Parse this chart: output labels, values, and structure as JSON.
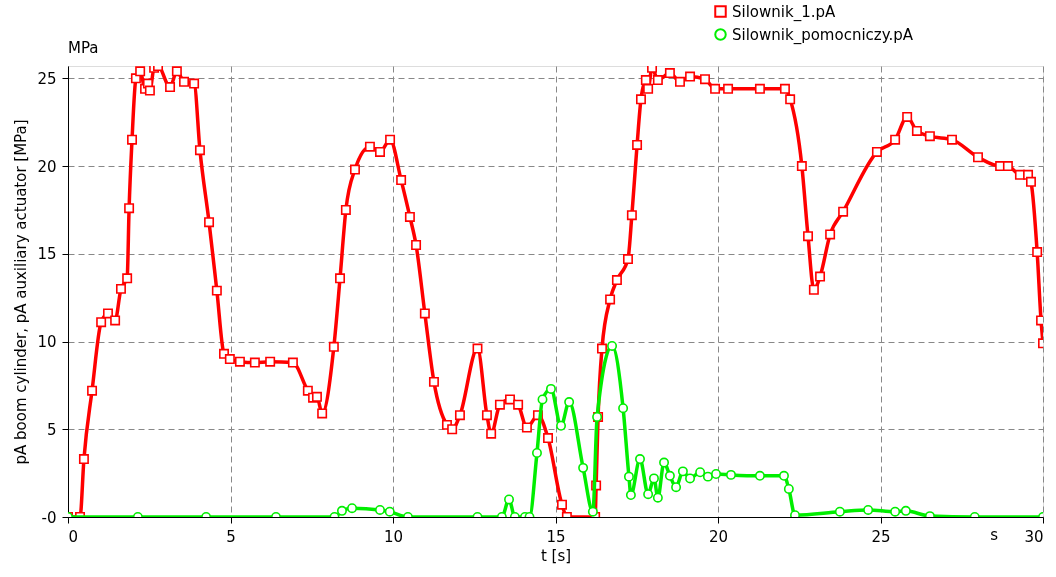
{
  "chart_data": {
    "type": "line",
    "xlabel": "t [s]",
    "ylabel": "pA boom cylinder, pA auxiliary actuator [MPa]",
    "annotations": [
      "MPa",
      "s"
    ],
    "xlim": [
      0,
      30
    ],
    "xticks": [
      0,
      5,
      10,
      15,
      20,
      25,
      30
    ],
    "ylim": [
      0,
      25.7
    ],
    "yticks": [
      {
        "value": 0,
        "label": "-0"
      },
      5,
      10,
      15,
      20,
      25
    ],
    "grid": true,
    "legend": "top right",
    "line_style": "solid",
    "series": [
      {
        "name": "Silownik_1.pA",
        "color": "#ff0000",
        "marker": "square",
        "x": [
          0,
          0.37,
          0.49,
          0.74,
          1.02,
          1.23,
          1.45,
          1.63,
          1.82,
          1.88,
          1.97,
          2.09,
          2.22,
          2.37,
          2.46,
          2.52,
          2.65,
          2.77,
          3.14,
          3.35,
          3.57,
          3.88,
          4.06,
          4.34,
          4.58,
          4.8,
          4.98,
          5.29,
          5.75,
          6.22,
          6.92,
          7.38,
          7.54,
          7.66,
          7.82,
          8.18,
          8.37,
          8.55,
          8.83,
          9.29,
          9.6,
          9.91,
          10.25,
          10.52,
          10.71,
          10.98,
          11.26,
          11.66,
          11.82,
          12.06,
          12.6,
          12.89,
          13.02,
          13.29,
          13.6,
          13.85,
          14.12,
          14.46,
          14.77,
          15.2,
          15.35,
          16.22,
          16.25,
          16.31,
          16.43,
          16.68,
          16.89,
          17.23,
          17.35,
          17.51,
          17.63,
          17.78,
          17.85,
          17.97,
          18.15,
          18.52,
          18.83,
          19.14,
          19.6,
          19.91,
          20.31,
          21.29,
          22.06,
          22.22,
          22.58,
          22.77,
          22.95,
          23.14,
          23.45,
          23.85,
          24.89,
          25.45,
          25.82,
          26.12,
          26.52,
          27.2,
          28.0,
          28.68,
          28.92,
          29.29,
          29.54,
          29.63,
          29.82,
          29.94,
          30
        ],
        "values": [
          0,
          0,
          3.3,
          7.2,
          11.1,
          11.6,
          11.2,
          13.0,
          13.6,
          17.6,
          21.5,
          25.0,
          25.4,
          24.4,
          24.7,
          24.3,
          25.6,
          25.7,
          24.5,
          25.4,
          24.8,
          24.7,
          20.9,
          16.8,
          12.9,
          9.3,
          9.0,
          8.85,
          8.8,
          8.85,
          8.8,
          7.2,
          6.8,
          6.85,
          5.9,
          9.7,
          13.6,
          17.5,
          19.8,
          21.1,
          20.8,
          21.5,
          19.2,
          17.1,
          15.5,
          11.6,
          7.7,
          5.25,
          5.0,
          5.8,
          9.6,
          5.8,
          4.75,
          6.4,
          6.7,
          6.4,
          5.1,
          5.8,
          4.5,
          0.7,
          0,
          0,
          1.8,
          5.7,
          9.6,
          12.4,
          13.5,
          14.7,
          17.2,
          21.2,
          23.8,
          24.9,
          24.4,
          25.6,
          24.9,
          25.3,
          24.8,
          25.1,
          24.95,
          24.4,
          24.4,
          24.4,
          24.4,
          23.8,
          20.0,
          16.0,
          12.95,
          13.7,
          16.1,
          17.4,
          20.8,
          21.5,
          22.8,
          22.0,
          21.7,
          21.5,
          20.5,
          20.0,
          20.0,
          19.5,
          19.5,
          19.1,
          15.1,
          11.2,
          9.9
        ]
      },
      {
        "name": "Silownik_pomocniczy.pA",
        "color": "#00ee00",
        "marker": "circle",
        "x": [
          0,
          2.15,
          4.25,
          6.4,
          8.2,
          8.43,
          8.74,
          9.6,
          9.9,
          10.46,
          12.6,
          13.35,
          13.57,
          13.75,
          14.06,
          14.2,
          14.43,
          14.6,
          14.86,
          15.17,
          15.42,
          15.85,
          16.15,
          16.28,
          16.74,
          17.08,
          17.26,
          17.32,
          17.6,
          17.85,
          18.03,
          18.15,
          18.34,
          18.52,
          18.71,
          18.92,
          19.14,
          19.45,
          19.69,
          19.94,
          20.4,
          21.29,
          22.03,
          22.18,
          22.37,
          23.75,
          24.62,
          25.45,
          25.78,
          26.52,
          27.9,
          30
        ],
        "values": [
          0,
          0,
          0,
          0,
          0,
          0.35,
          0.5,
          0.4,
          0.3,
          0,
          0,
          0,
          1.0,
          0,
          0,
          0,
          3.65,
          6.7,
          7.3,
          5.2,
          6.55,
          2.8,
          0.3,
          5.7,
          9.75,
          6.2,
          2.3,
          1.25,
          3.3,
          1.3,
          2.2,
          1.1,
          3.1,
          2.35,
          1.7,
          2.6,
          2.2,
          2.55,
          2.3,
          2.45,
          2.4,
          2.35,
          2.35,
          1.6,
          0.1,
          0.3,
          0.4,
          0.3,
          0.35,
          0.05,
          0,
          0
        ]
      }
    ]
  }
}
